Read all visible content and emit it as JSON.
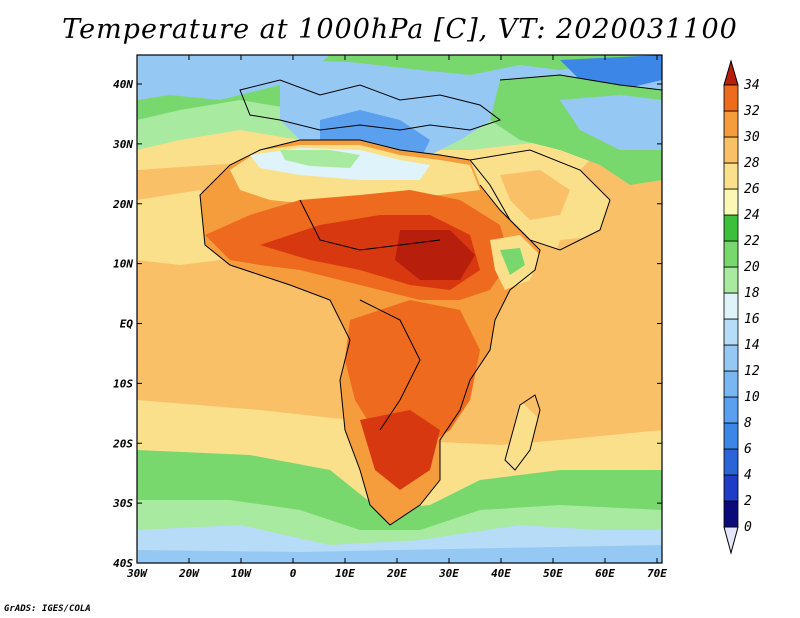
{
  "title": "Temperature at 1000hPa [C], VT: 2020031100",
  "credit": "GrADS: IGES/COLA",
  "map": {
    "lon_labels": [
      "30W",
      "20W",
      "10W",
      "0",
      "10E",
      "20E",
      "30E",
      "40E",
      "50E",
      "60E",
      "70E"
    ],
    "lat_labels": [
      "40N",
      "30N",
      "20N",
      "10N",
      "EQ",
      "10S",
      "20S",
      "30S",
      "40S"
    ]
  },
  "colorbar": {
    "levels": [
      "0",
      "2",
      "4",
      "6",
      "8",
      "10",
      "12",
      "14",
      "16",
      "18",
      "20",
      "22",
      "24",
      "26",
      "28",
      "30",
      "32",
      "34"
    ],
    "colors": [
      "#0a0a78",
      "#1e3cc8",
      "#2a64d6",
      "#3c86e8",
      "#5aa0ee",
      "#7ab6f2",
      "#96c8f4",
      "#b6dcf7",
      "#def3fa",
      "#a8eaa0",
      "#78d86e",
      "#3cc03c",
      "#fbf7b4",
      "#fbe08c",
      "#f9c068",
      "#f59c3c",
      "#ee6a1e",
      "#d83810",
      "#b81e0c"
    ]
  }
}
